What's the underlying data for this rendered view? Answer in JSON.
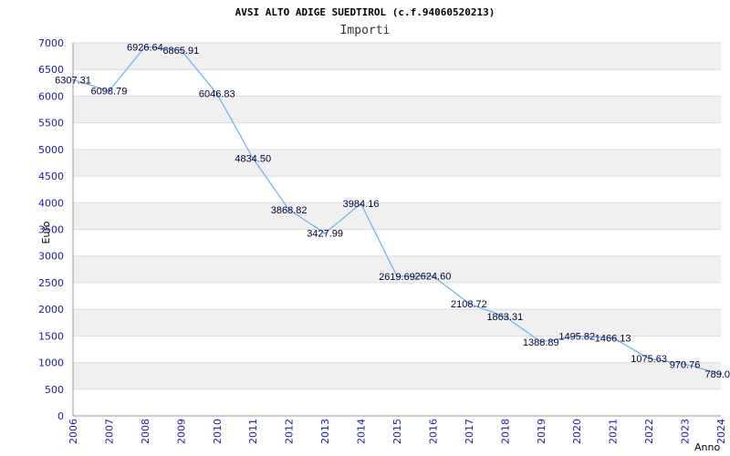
{
  "chart_data": {
    "type": "line",
    "title": "AVSI ALTO ADIGE SUEDTIROL (c.f.94060520213)",
    "subtitle": "Importi",
    "xlabel": "Anno",
    "ylabel": "Euro",
    "categories": [
      "2006",
      "2007",
      "2008",
      "2009",
      "2010",
      "2011",
      "2012",
      "2013",
      "2014",
      "2015",
      "2016",
      "2017",
      "2018",
      "2019",
      "2020",
      "2021",
      "2022",
      "2023",
      "2024"
    ],
    "values": [
      6307.31,
      6098.79,
      6926.64,
      6865.91,
      6046.83,
      4834.5,
      3868.82,
      3427.99,
      3984.16,
      2619.69,
      2624.6,
      2108.72,
      1863.31,
      1388.89,
      1495.82,
      1466.13,
      1075.63,
      970.76,
      789.0
    ],
    "data_labels": [
      "6307.31",
      "6098.79",
      "6926.64",
      "6865.91",
      "6046.83",
      "4834.50",
      "3868.82",
      "3427.99",
      "3984.16",
      "2619.69",
      "2624.60",
      "2108.72",
      "1863.31",
      "1388.89",
      "1495.82",
      "1466.13",
      "1075.63",
      "970.76",
      "789.0"
    ],
    "ylim": [
      0,
      7000
    ],
    "yticks": [
      "0",
      "500",
      "1000",
      "1500",
      "2000",
      "2500",
      "3000",
      "3500",
      "4000",
      "4500",
      "5000",
      "5500",
      "6000",
      "6500",
      "7000"
    ],
    "grid": true,
    "colors": {
      "line": "#6ab0f0",
      "band": "#f0f0f0",
      "grid": "#dcdcdc",
      "tick": "#1a1aa6"
    }
  }
}
